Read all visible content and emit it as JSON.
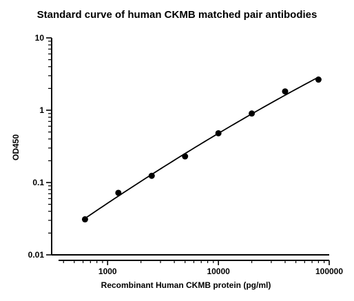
{
  "chart_data": {
    "type": "scatter",
    "title": "Standard curve of human CKMB matched pair antibodies",
    "xlabel": "Recombinant Human CKMB protein (pg/ml)",
    "ylabel": "OD450",
    "x_scale": "log",
    "y_scale": "log",
    "xlim": [
      312.5,
      100000
    ],
    "ylim": [
      0.01,
      10
    ],
    "x_ticks": [
      1000,
      10000,
      100000
    ],
    "x_tick_labels": [
      "1000",
      "10000",
      "100000"
    ],
    "y_ticks": [
      0.01,
      0.1,
      1,
      10
    ],
    "y_tick_labels": [
      "0.01",
      "0.1",
      "1",
      "10"
    ],
    "grid": false,
    "series": [
      {
        "x": [
          625,
          1250,
          2500,
          5000,
          10000,
          20000,
          40000,
          80000
        ],
        "y": [
          0.031,
          0.072,
          0.124,
          0.23,
          0.48,
          0.9,
          1.82,
          2.65
        ],
        "fit": "curve"
      }
    ]
  }
}
